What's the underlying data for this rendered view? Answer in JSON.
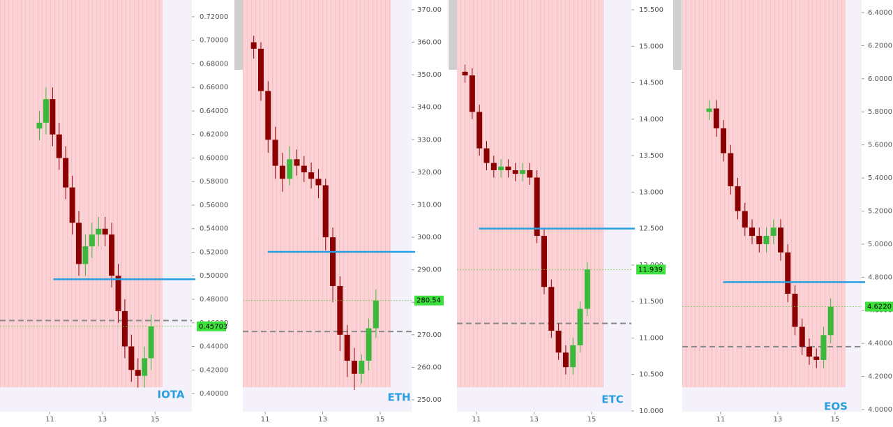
{
  "chart_data": [
    {
      "type": "candlestick",
      "name": "IOTA",
      "up_color": "#3cb93c",
      "down_color": "#8b0000",
      "x": [
        10.6,
        10.85,
        11.1,
        11.35,
        11.6,
        11.85,
        12.1,
        12.35,
        12.6,
        12.85,
        13.1,
        13.35,
        13.6,
        13.85,
        14.1,
        14.35,
        14.6,
        14.85
      ],
      "open": [
        0.625,
        0.63,
        0.65,
        0.62,
        0.6,
        0.575,
        0.545,
        0.51,
        0.525,
        0.535,
        0.54,
        0.535,
        0.5,
        0.47,
        0.44,
        0.42,
        0.415,
        0.43
      ],
      "high": [
        0.64,
        0.66,
        0.66,
        0.63,
        0.61,
        0.585,
        0.555,
        0.535,
        0.545,
        0.55,
        0.55,
        0.545,
        0.51,
        0.48,
        0.45,
        0.43,
        0.44,
        0.467
      ],
      "low": [
        0.615,
        0.62,
        0.61,
        0.59,
        0.565,
        0.535,
        0.5,
        0.5,
        0.515,
        0.525,
        0.525,
        0.49,
        0.46,
        0.43,
        0.41,
        0.405,
        0.405,
        0.42
      ],
      "close": [
        0.63,
        0.65,
        0.62,
        0.6,
        0.575,
        0.545,
        0.51,
        0.525,
        0.535,
        0.54,
        0.535,
        0.5,
        0.47,
        0.44,
        0.42,
        0.415,
        0.43,
        0.45703
      ],
      "xlim": [
        9.1,
        16.4
      ],
      "xticks": [
        11,
        13,
        15
      ],
      "ylim": [
        0.3846,
        0.7342
      ],
      "yticks": [
        {
          "value": 0.4,
          "label": "0.40000"
        },
        {
          "value": 0.42,
          "label": "0.42000"
        },
        {
          "value": 0.44,
          "label": "0.44000"
        },
        {
          "value": 0.46,
          "label": "0.46000"
        },
        {
          "value": 0.48,
          "label": "0.48000"
        },
        {
          "value": 0.5,
          "label": "0.50000"
        },
        {
          "value": 0.52,
          "label": "0.52000"
        },
        {
          "value": 0.54,
          "label": "0.54000"
        },
        {
          "value": 0.56,
          "label": "0.56000"
        },
        {
          "value": 0.58,
          "label": "0.58000"
        },
        {
          "value": 0.6,
          "label": "0.60000"
        },
        {
          "value": 0.62,
          "label": "0.62000"
        },
        {
          "value": 0.64,
          "label": "0.64000"
        },
        {
          "value": 0.66,
          "label": "0.66000"
        },
        {
          "value": 0.68,
          "label": "0.68000"
        },
        {
          "value": 0.7,
          "label": "0.70000"
        },
        {
          "value": 0.72,
          "label": "0.72000"
        }
      ],
      "last_price": {
        "value": 0.45703,
        "label": "0.45703"
      },
      "support_line": 0.497,
      "dashed_line": 0.462
    },
    {
      "type": "candlestick",
      "name": "ETH",
      "up_color": "#3cb93c",
      "down_color": "#8b0000",
      "x": [
        10.6,
        10.85,
        11.1,
        11.35,
        11.6,
        11.85,
        12.1,
        12.35,
        12.6,
        12.85,
        13.1,
        13.35,
        13.6,
        13.85,
        14.1,
        14.35,
        14.6,
        14.85
      ],
      "open": [
        360,
        358,
        345,
        330,
        322,
        318,
        324,
        322,
        320,
        318,
        316,
        300,
        285,
        270,
        262,
        258,
        262,
        272
      ],
      "high": [
        362,
        360,
        348,
        334,
        326,
        328,
        327,
        325,
        323,
        321,
        318,
        303,
        288,
        273,
        266,
        264,
        275,
        284
      ],
      "low": [
        355,
        342,
        326,
        318,
        314,
        316,
        319,
        317,
        315,
        312,
        296,
        280,
        265,
        257,
        253,
        255,
        259,
        269
      ],
      "close": [
        358,
        345,
        330,
        322,
        318,
        324,
        322,
        320,
        318,
        316,
        300,
        285,
        270,
        262,
        258,
        262,
        272,
        280.54
      ],
      "xlim": [
        10.22,
        16.09
      ],
      "xticks": [
        11,
        13,
        15
      ],
      "ylim": [
        246.35,
        373.0
      ],
      "yticks": [
        {
          "value": 250,
          "label": "250.00"
        },
        {
          "value": 260,
          "label": "260.00"
        },
        {
          "value": 270,
          "label": "270.00"
        },
        {
          "value": 280,
          "label": "280.00"
        },
        {
          "value": 290,
          "label": "290.00"
        },
        {
          "value": 300,
          "label": "300.00"
        },
        {
          "value": 310,
          "label": "310.00"
        },
        {
          "value": 320,
          "label": "320.00"
        },
        {
          "value": 330,
          "label": "330.00"
        },
        {
          "value": 340,
          "label": "340.00"
        },
        {
          "value": 350,
          "label": "350.00"
        },
        {
          "value": 360,
          "label": "360.00"
        },
        {
          "value": 370,
          "label": "370.00"
        }
      ],
      "last_price": {
        "value": 280.54,
        "label": "280.54"
      },
      "support_line": 295.5,
      "dashed_line": 271
    },
    {
      "type": "candlestick",
      "name": "ETC",
      "up_color": "#3cb93c",
      "down_color": "#8b0000",
      "x": [
        10.6,
        10.85,
        11.1,
        11.35,
        11.6,
        11.85,
        12.1,
        12.35,
        12.6,
        12.85,
        13.1,
        13.35,
        13.6,
        13.85,
        14.1,
        14.35,
        14.6,
        14.85
      ],
      "open": [
        14.65,
        14.6,
        14.1,
        13.6,
        13.4,
        13.3,
        13.35,
        13.3,
        13.25,
        13.3,
        13.2,
        12.4,
        11.7,
        11.1,
        10.8,
        10.6,
        10.9,
        11.4
      ],
      "high": [
        14.75,
        14.7,
        14.2,
        13.7,
        13.5,
        13.45,
        13.45,
        13.4,
        13.4,
        13.4,
        13.3,
        12.5,
        11.8,
        11.2,
        10.9,
        11.0,
        11.5,
        12.04
      ],
      "low": [
        14.5,
        14.0,
        13.5,
        13.3,
        13.2,
        13.2,
        13.2,
        13.15,
        13.15,
        13.1,
        12.3,
        11.6,
        11.0,
        10.7,
        10.5,
        10.5,
        10.8,
        11.3
      ],
      "close": [
        14.6,
        14.1,
        13.6,
        13.4,
        13.3,
        13.35,
        13.3,
        13.25,
        13.3,
        13.2,
        12.4,
        11.7,
        11.1,
        10.8,
        10.6,
        10.9,
        11.4,
        11.939
      ],
      "xlim": [
        10.32,
        16.38
      ],
      "xticks": [
        11,
        13,
        15
      ],
      "ylim": [
        9.99,
        15.634
      ],
      "yticks": [
        {
          "value": 10,
          "label": "10.000"
        },
        {
          "value": 10.5,
          "label": "10.500"
        },
        {
          "value": 11,
          "label": "11.000"
        },
        {
          "value": 11.5,
          "label": "11.500"
        },
        {
          "value": 12,
          "label": "12.000"
        },
        {
          "value": 12.5,
          "label": "12.500"
        },
        {
          "value": 13,
          "label": "13.000"
        },
        {
          "value": 13.5,
          "label": "13.500"
        },
        {
          "value": 14,
          "label": "14.000"
        },
        {
          "value": 14.5,
          "label": "14.500"
        },
        {
          "value": 15,
          "label": "15.000"
        },
        {
          "value": 15.5,
          "label": "15.500"
        }
      ],
      "last_price": {
        "value": 11.939,
        "label": "11.939"
      },
      "support_line": 12.5,
      "dashed_line": 11.2
    },
    {
      "type": "candlestick",
      "name": "EOS",
      "up_color": "#3cb93c",
      "down_color": "#8b0000",
      "x": [
        10.6,
        10.85,
        11.1,
        11.35,
        11.6,
        11.85,
        12.1,
        12.35,
        12.6,
        12.85,
        13.1,
        13.35,
        13.6,
        13.85,
        14.1,
        14.35,
        14.6,
        14.85
      ],
      "open": [
        5.8,
        5.82,
        5.7,
        5.55,
        5.35,
        5.2,
        5.1,
        5.05,
        5.0,
        5.05,
        5.1,
        4.95,
        4.7,
        4.5,
        4.38,
        4.32,
        4.3,
        4.45
      ],
      "high": [
        5.87,
        5.87,
        5.75,
        5.6,
        5.4,
        5.25,
        5.15,
        5.1,
        5.1,
        5.15,
        5.15,
        5.0,
        4.75,
        4.55,
        4.43,
        4.37,
        4.5,
        4.672
      ],
      "low": [
        5.75,
        5.65,
        5.5,
        5.3,
        5.15,
        5.05,
        5.0,
        4.95,
        4.95,
        5.0,
        4.9,
        4.65,
        4.45,
        4.33,
        4.27,
        4.25,
        4.25,
        4.4
      ],
      "close": [
        5.82,
        5.7,
        5.55,
        5.35,
        5.2,
        5.1,
        5.05,
        5.0,
        5.05,
        5.1,
        4.95,
        4.7,
        4.5,
        4.38,
        4.32,
        4.3,
        4.45,
        4.622
      ],
      "xlim": [
        9.66,
        15.93
      ],
      "xticks": [
        11,
        13,
        15
      ],
      "ylim": [
        3.9873,
        6.4759
      ],
      "yticks": [
        {
          "value": 4.0,
          "label": "4.0000"
        },
        {
          "value": 4.2,
          "label": "4.2000"
        },
        {
          "value": 4.4,
          "label": "4.4000"
        },
        {
          "value": 4.6,
          "label": "4.6000"
        },
        {
          "value": 4.8,
          "label": "4.8000"
        },
        {
          "value": 5.0,
          "label": "5.0000"
        },
        {
          "value": 5.2,
          "label": "5.2000"
        },
        {
          "value": 5.4,
          "label": "5.4000"
        },
        {
          "value": 5.6,
          "label": "5.6000"
        },
        {
          "value": 5.8,
          "label": "5.8000"
        },
        {
          "value": 6.0,
          "label": "6.0000"
        },
        {
          "value": 6.2,
          "label": "6.2000"
        },
        {
          "value": 6.4,
          "label": "6.4000"
        }
      ],
      "last_price": {
        "value": 4.622,
        "label": "4.6220"
      },
      "support_line": 4.77,
      "dashed_line": 4.38
    }
  ]
}
